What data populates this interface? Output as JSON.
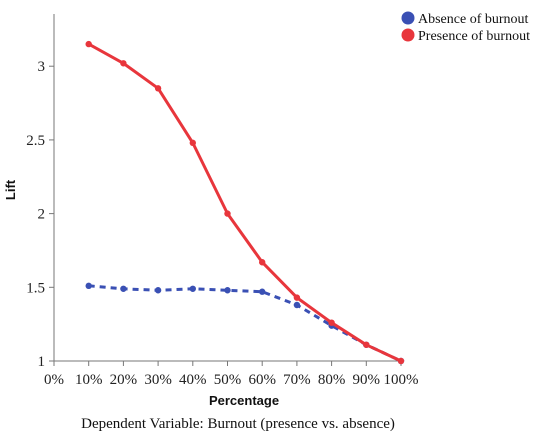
{
  "chart_data": {
    "type": "line",
    "title": "",
    "xlabel": "Percentage",
    "ylabel": "Lift",
    "caption": "Dependent Variable: Burnout (presence vs. absence)",
    "x": [
      10,
      20,
      30,
      40,
      50,
      60,
      70,
      80,
      90,
      100
    ],
    "x_ticks": [
      0,
      10,
      20,
      30,
      40,
      50,
      60,
      70,
      80,
      90,
      100
    ],
    "x_tick_labels": [
      "0%",
      "10%",
      "20%",
      "30%",
      "40%",
      "50%",
      "60%",
      "70%",
      "80%",
      "90%",
      "100%"
    ],
    "xlim": [
      0,
      100
    ],
    "y_ticks": [
      1,
      1.5,
      2,
      2.5,
      3
    ],
    "y_tick_labels": [
      "1",
      "1.5",
      "2",
      "2.5",
      "3"
    ],
    "ylim": [
      1,
      3.3
    ],
    "grid": false,
    "legend_position": "top-right",
    "series": [
      {
        "name": "Absence of burnout",
        "color": "#3a50b4",
        "style": "dashed",
        "values": [
          1.51,
          1.49,
          1.48,
          1.49,
          1.48,
          1.47,
          1.38,
          1.24,
          1.11,
          1.0
        ]
      },
      {
        "name": "Presence of burnout",
        "color": "#e8363c",
        "style": "solid",
        "values": [
          3.15,
          3.02,
          2.85,
          2.48,
          2.0,
          1.67,
          1.43,
          1.26,
          1.11,
          1.0
        ]
      }
    ]
  }
}
